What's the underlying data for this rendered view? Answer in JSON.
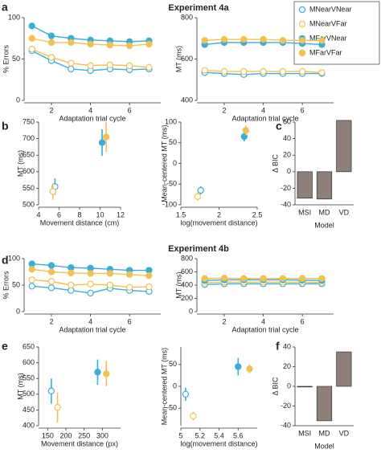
{
  "chart_data": [
    {
      "type": "line",
      "title": "Experiment 4a",
      "panel": "a",
      "xlabel": "Adaptation trial cycle",
      "ylabel": "% Errors",
      "x": [
        1,
        2,
        3,
        4,
        5,
        6,
        7
      ],
      "xlim": [
        0.6,
        7.6
      ],
      "xticks": [
        2,
        4,
        6
      ],
      "ylim": [
        0,
        100
      ],
      "yticks": [
        0,
        50,
        100
      ],
      "legend": "top-right",
      "series": [
        {
          "name": "MNearVNear",
          "color": "#38aedb",
          "marker": "open",
          "values": [
            60,
            48,
            38,
            36,
            38,
            37,
            38
          ]
        },
        {
          "name": "MNearVFar",
          "color": "#f3c052",
          "marker": "open",
          "values": [
            62,
            52,
            45,
            42,
            43,
            42,
            40
          ]
        },
        {
          "name": "MFarVNear",
          "color": "#38aedb",
          "marker": "filled",
          "values": [
            90,
            78,
            75,
            73,
            72,
            71,
            72
          ]
        },
        {
          "name": "MFarVFar",
          "color": "#f3c052",
          "marker": "filled",
          "values": [
            75,
            70,
            70,
            68,
            67,
            66,
            68
          ]
        }
      ]
    },
    {
      "type": "line",
      "xlabel": "Adaptation trial cycle",
      "ylabel": "MT (ms)",
      "x": [
        1,
        2,
        3,
        4,
        5,
        6,
        7
      ],
      "xlim": [
        0.6,
        7.6
      ],
      "xticks": [
        2,
        4,
        6
      ],
      "ylim": [
        400,
        800
      ],
      "yticks": [
        400,
        600,
        800
      ],
      "series": [
        {
          "color": "#38aedb",
          "marker": "open",
          "values": [
            535,
            530,
            525,
            530,
            530,
            530,
            530
          ]
        },
        {
          "color": "#f3c052",
          "marker": "open",
          "values": [
            545,
            540,
            540,
            540,
            540,
            540,
            535
          ]
        },
        {
          "color": "#38aedb",
          "marker": "filled",
          "values": [
            670,
            680,
            680,
            680,
            680,
            675,
            670
          ]
        },
        {
          "color": "#f3c052",
          "marker": "filled",
          "values": [
            690,
            695,
            695,
            695,
            690,
            690,
            690
          ]
        }
      ]
    },
    {
      "type": "scatter",
      "panel": "b",
      "xlabel": "Movement distance (cm)",
      "ylabel": "MT (ms)",
      "xlim": [
        4,
        12
      ],
      "xticks": [
        4,
        6,
        8,
        10,
        12
      ],
      "ylim": [
        500,
        750
      ],
      "yticks": [
        500,
        550,
        600,
        650,
        700,
        750
      ],
      "series": [
        {
          "color": "#38aedb",
          "marker": "open",
          "x": [
            5.6
          ],
          "values": [
            555
          ],
          "errors": [
            25
          ]
        },
        {
          "color": "#f3c052",
          "marker": "open",
          "x": [
            5.4
          ],
          "values": [
            540
          ],
          "errors": [
            25
          ]
        },
        {
          "color": "#38aedb",
          "marker": "filled",
          "x": [
            10.2
          ],
          "values": [
            688
          ],
          "errors": [
            40
          ]
        },
        {
          "color": "#f3c052",
          "marker": "filled",
          "x": [
            10.6
          ],
          "values": [
            705
          ],
          "errors": [
            45
          ]
        }
      ]
    },
    {
      "type": "scatter",
      "xlabel": "log(movement distance)",
      "ylabel": "Mean-centered MT (ms)",
      "xlim": [
        1.5,
        2.5
      ],
      "xticks": [
        1.5,
        2,
        2.5
      ],
      "ylim": [
        -100,
        100
      ],
      "yticks": [
        -100,
        -50,
        0,
        50,
        100
      ],
      "series": [
        {
          "color": "#38aedb",
          "marker": "open",
          "x": [
            1.76
          ],
          "values": [
            -65
          ],
          "errors": [
            10
          ]
        },
        {
          "color": "#f3c052",
          "marker": "open",
          "x": [
            1.72
          ],
          "values": [
            -80
          ],
          "errors": [
            10
          ]
        },
        {
          "color": "#38aedb",
          "marker": "filled",
          "x": [
            2.33
          ],
          "values": [
            65
          ],
          "errors": [
            12
          ]
        },
        {
          "color": "#f3c052",
          "marker": "filled",
          "x": [
            2.35
          ],
          "values": [
            80
          ],
          "errors": [
            12
          ]
        }
      ]
    },
    {
      "type": "bar",
      "panel": "c",
      "xlabel": "Model",
      "ylabel": "Δ BIC",
      "color": "#8f7f78",
      "categories": [
        "MSI",
        "MD",
        "VD"
      ],
      "values": [
        -32,
        -33,
        62
      ],
      "ylim": [
        -40,
        60
      ],
      "yticks": [
        -40,
        -20,
        0,
        20,
        40,
        60
      ]
    },
    {
      "type": "line",
      "title": "Experiment 4b",
      "panel": "d",
      "xlabel": "Adaptation trial cycle",
      "ylabel": "% Errors",
      "x": [
        1,
        2,
        3,
        4,
        5,
        6,
        7
      ],
      "xlim": [
        0.6,
        7.6
      ],
      "xticks": [
        2,
        4,
        6
      ],
      "ylim": [
        0,
        100
      ],
      "yticks": [
        0,
        50,
        100
      ],
      "series": [
        {
          "color": "#38aedb",
          "marker": "open",
          "values": [
            48,
            45,
            40,
            35,
            44,
            40,
            38
          ]
        },
        {
          "color": "#f3c052",
          "marker": "open",
          "values": [
            60,
            57,
            50,
            52,
            50,
            46,
            47
          ]
        },
        {
          "color": "#38aedb",
          "marker": "filled",
          "values": [
            90,
            87,
            83,
            82,
            80,
            78,
            78
          ]
        },
        {
          "color": "#f3c052",
          "marker": "filled",
          "values": [
            80,
            75,
            73,
            72,
            72,
            70,
            68
          ]
        }
      ]
    },
    {
      "type": "line",
      "xlabel": "Adaptation trial cycle",
      "ylabel": "MT (ms)",
      "x": [
        1,
        2,
        3,
        4,
        5,
        6,
        7
      ],
      "xlim": [
        0.6,
        7.6
      ],
      "xticks": [
        2,
        4,
        6
      ],
      "ylim": [
        0,
        800
      ],
      "yticks": [
        0,
        200,
        400,
        600,
        800
      ],
      "series": [
        {
          "color": "#38aedb",
          "marker": "open",
          "values": [
            410,
            420,
            420,
            420,
            420,
            420,
            420
          ]
        },
        {
          "color": "#f3c052",
          "marker": "open",
          "values": [
            440,
            445,
            445,
            445,
            445,
            445,
            440
          ]
        },
        {
          "color": "#38aedb",
          "marker": "filled",
          "values": [
            470,
            480,
            480,
            480,
            480,
            475,
            470
          ]
        },
        {
          "color": "#f3c052",
          "marker": "filled",
          "values": [
            500,
            505,
            500,
            500,
            500,
            500,
            500
          ]
        }
      ]
    },
    {
      "type": "scatter",
      "panel": "e",
      "xlabel": "Movement distance (px)",
      "ylabel": "MT (ms)",
      "xlim": [
        125,
        350
      ],
      "xticks": [
        150,
        200,
        250,
        300
      ],
      "ylim": [
        400,
        650
      ],
      "yticks": [
        400,
        450,
        500,
        550,
        600,
        650
      ],
      "series": [
        {
          "color": "#38aedb",
          "marker": "open",
          "x": [
            160
          ],
          "values": [
            510
          ],
          "errors": [
            40
          ]
        },
        {
          "color": "#f3c052",
          "marker": "open",
          "x": [
            177
          ],
          "values": [
            458
          ],
          "errors": [
            48
          ]
        },
        {
          "color": "#38aedb",
          "marker": "filled",
          "x": [
            287
          ],
          "values": [
            570
          ],
          "errors": [
            40
          ]
        },
        {
          "color": "#f3c052",
          "marker": "filled",
          "x": [
            311
          ],
          "values": [
            565
          ],
          "errors": [
            40
          ]
        }
      ]
    },
    {
      "type": "scatter",
      "xlabel": "log(movement distance)",
      "ylabel": "Mean-centered MT (ms)",
      "xlim": [
        5,
        5.8
      ],
      "xticks": [
        5,
        5.2,
        5.4,
        5.6
      ],
      "ylim": [
        -90,
        90
      ],
      "yticks": [
        -50,
        0,
        50
      ],
      "series": [
        {
          "color": "#38aedb",
          "marker": "open",
          "x": [
            5.05
          ],
          "values": [
            -18
          ],
          "errors": [
            15
          ]
        },
        {
          "color": "#f3c052",
          "marker": "open",
          "x": [
            5.13
          ],
          "values": [
            -68
          ],
          "errors": [
            10
          ]
        },
        {
          "color": "#38aedb",
          "marker": "filled",
          "x": [
            5.6
          ],
          "values": [
            45
          ],
          "errors": [
            20
          ]
        },
        {
          "color": "#f3c052",
          "marker": "filled",
          "x": [
            5.72
          ],
          "values": [
            40
          ],
          "errors": [
            10
          ]
        }
      ]
    },
    {
      "type": "bar",
      "panel": "f",
      "xlabel": "Model",
      "ylabel": "Δ BIC",
      "color": "#8f7f78",
      "categories": [
        "MSI",
        "MD",
        "VD"
      ],
      "values": [
        0,
        -35,
        35
      ],
      "ylim": [
        -40,
        40
      ],
      "yticks": [
        -40,
        -20,
        0,
        20,
        40
      ]
    }
  ]
}
